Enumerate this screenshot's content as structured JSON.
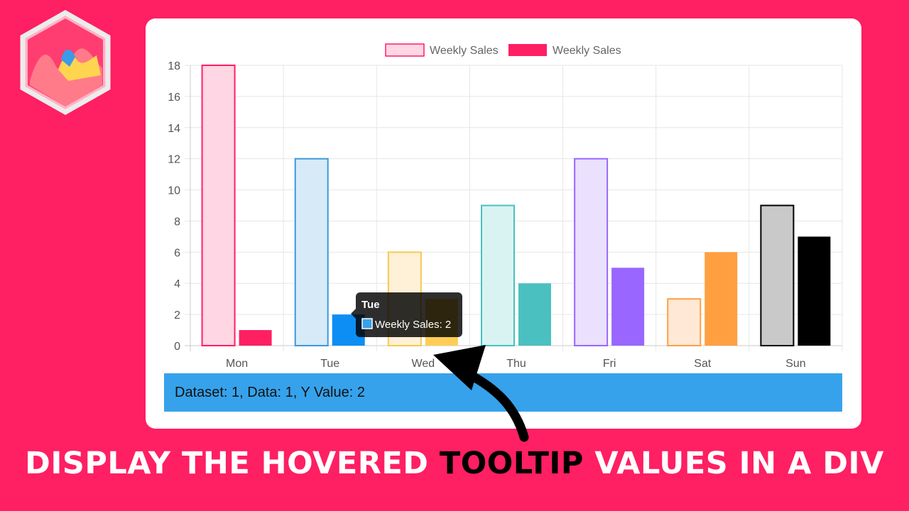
{
  "chart_data": {
    "type": "bar",
    "categories": [
      "Mon",
      "Tue",
      "Wed",
      "Thu",
      "Fri",
      "Sat",
      "Sun"
    ],
    "series": [
      {
        "name": "Weekly Sales",
        "values": [
          18,
          12,
          6,
          9,
          12,
          3,
          9
        ]
      },
      {
        "name": "Weekly Sales",
        "values": [
          1,
          2,
          3,
          4,
          5,
          6,
          7
        ]
      }
    ],
    "ylim": [
      0,
      18
    ],
    "yticks": [
      0,
      2,
      4,
      6,
      8,
      10,
      12,
      14,
      16,
      18
    ],
    "grid": true,
    "legend": "top",
    "colors": {
      "series1_fill": [
        "#ffd6e4",
        "#d7eaf8",
        "#fff0d8",
        "#d9f3f3",
        "#ebe0fd",
        "#ffe8d6",
        "#c9c9c9"
      ],
      "series1_border": [
        "#ff1f63",
        "#3a9ad9",
        "#f7c94e",
        "#4bc0c0",
        "#9966ff",
        "#ff9f40",
        "#000000"
      ],
      "series2_fill": [
        "#ff1f63",
        "#0c8ef5",
        "#ffcd56",
        "#4bc0c0",
        "#9966ff",
        "#ff9f40",
        "#000000"
      ]
    }
  },
  "tooltip": {
    "title": "Tue",
    "label": "Weekly Sales: 2",
    "swatch_color": "#36a2eb"
  },
  "info_bar": {
    "text": "Dataset: 1, Data: 1, Y Value: 2",
    "color": "#36a2eb"
  },
  "headline": {
    "before": "DISPLAY THE HOVERED ",
    "highlight": "TOOLTIP",
    "after": " VALUES IN A DIV"
  }
}
